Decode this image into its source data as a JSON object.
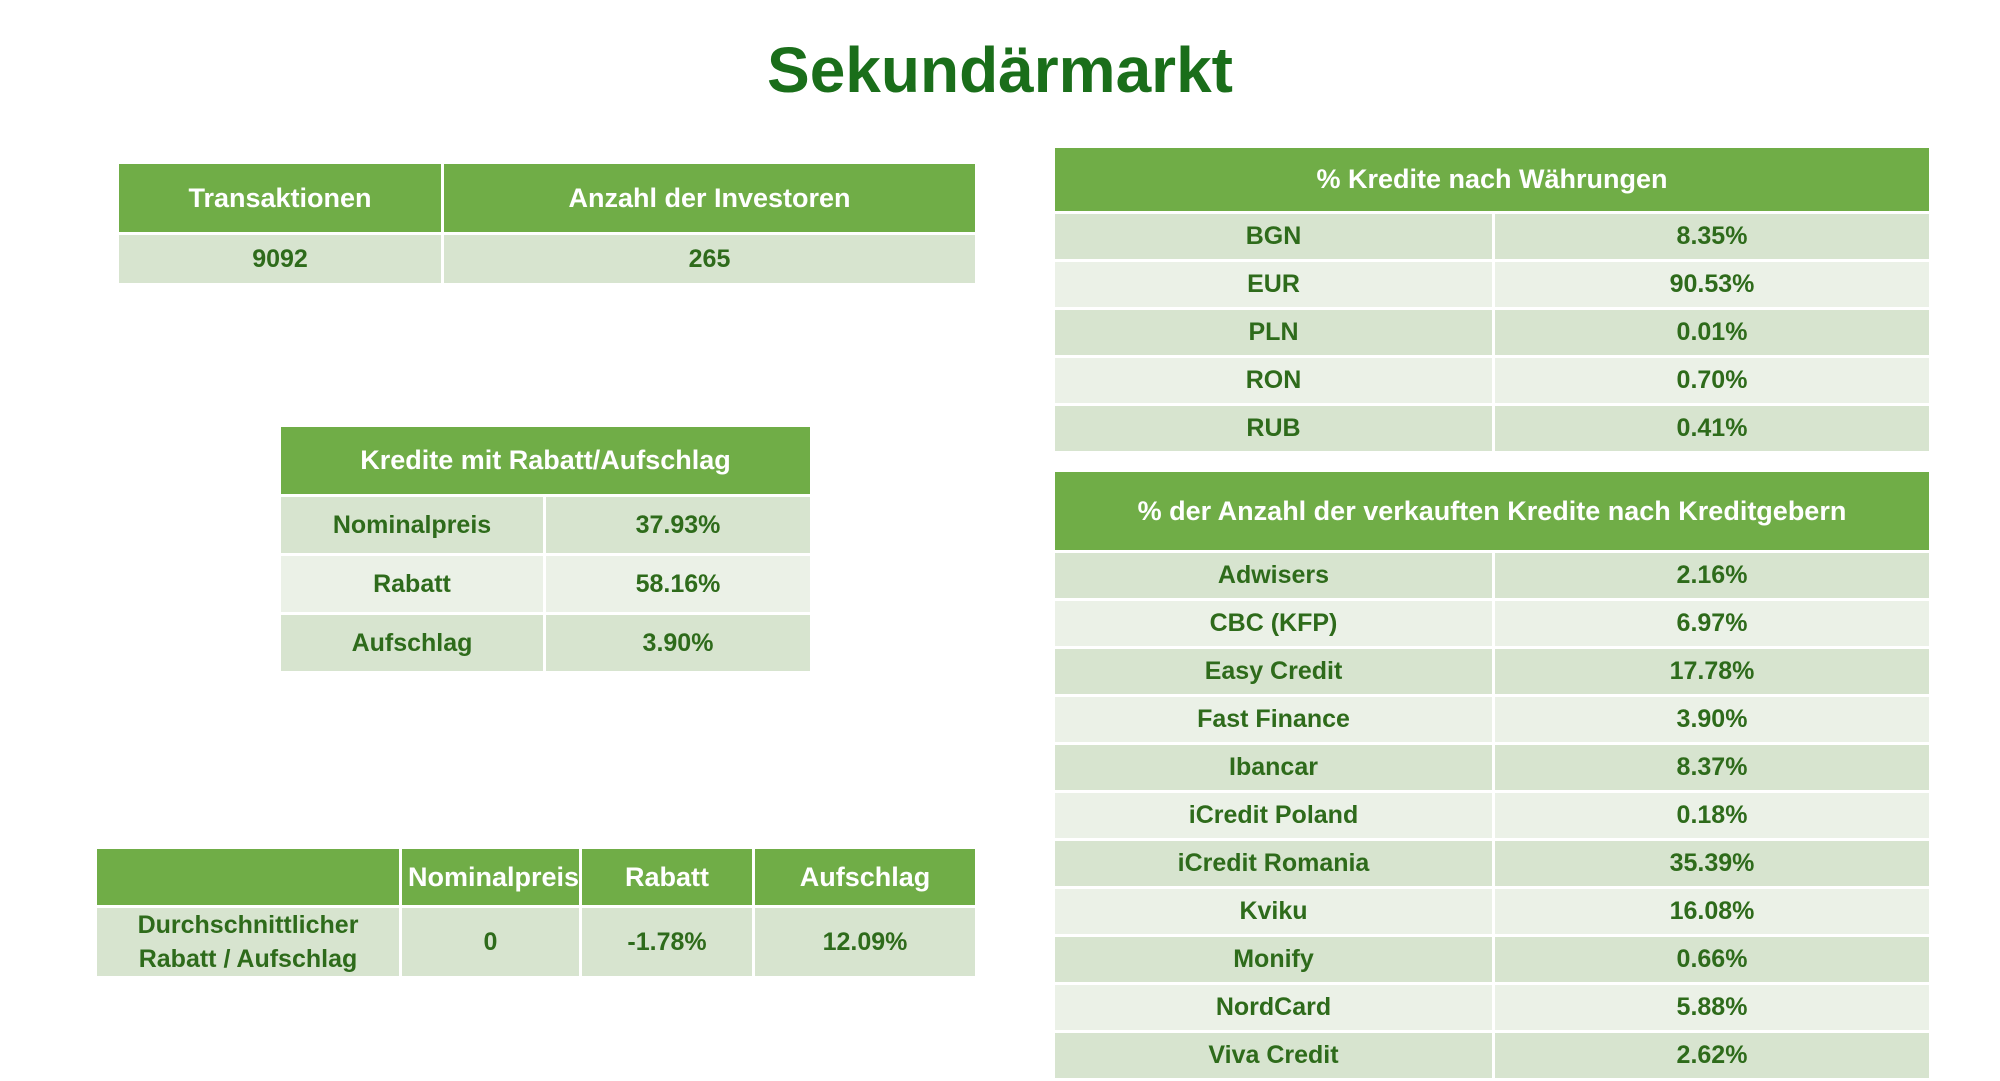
{
  "title": "Sekundärmarkt",
  "summary": {
    "headers": [
      "Transaktionen",
      "Anzahl der Investoren"
    ],
    "values": [
      "9092",
      "265"
    ]
  },
  "discount": {
    "header": "Kredite mit Rabatt/Aufschlag",
    "rows": [
      {
        "label": "Nominalpreis",
        "value": "37.93%"
      },
      {
        "label": "Rabatt",
        "value": "58.16%"
      },
      {
        "label": "Aufschlag",
        "value": "3.90%"
      }
    ]
  },
  "average": {
    "headers": [
      "",
      "Nominalpreis",
      "Rabatt",
      "Aufschlag"
    ],
    "row_label_line1": "Durchschnittlicher",
    "row_label_line2": "Rabatt / Aufschlag",
    "values": [
      "0",
      "-1.78%",
      "12.09%"
    ]
  },
  "currencies": {
    "header": "% Kredite nach Währungen",
    "rows": [
      {
        "label": "BGN",
        "value": "8.35%"
      },
      {
        "label": "EUR",
        "value": "90.53%"
      },
      {
        "label": "PLN",
        "value": "0.01%"
      },
      {
        "label": "RON",
        "value": "0.70%"
      },
      {
        "label": "RUB",
        "value": "0.41%"
      }
    ]
  },
  "lenders": {
    "header": "% der Anzahl der verkauften Kredite nach Kreditgebern",
    "rows": [
      {
        "label": "Adwisers",
        "value": "2.16%"
      },
      {
        "label": "CBC (KFP)",
        "value": "6.97%"
      },
      {
        "label": "Easy Credit",
        "value": "17.78%"
      },
      {
        "label": "Fast Finance",
        "value": "3.90%"
      },
      {
        "label": "Ibancar",
        "value": "8.37%"
      },
      {
        "label": "iCredit Poland",
        "value": "0.18%"
      },
      {
        "label": "iCredit Romania",
        "value": "35.39%"
      },
      {
        "label": "Kviku",
        "value": "16.08%"
      },
      {
        "label": "Monify",
        "value": "0.66%"
      },
      {
        "label": "NordCard",
        "value": "5.88%"
      },
      {
        "label": "Viva Credit",
        "value": "2.62%"
      }
    ]
  },
  "colors": {
    "title": "#1a6e1a",
    "header_bg": "#70ad47",
    "row_dark": "#d7e4cf",
    "row_light": "#ebf1e7",
    "value_text": "#1f7a12"
  }
}
